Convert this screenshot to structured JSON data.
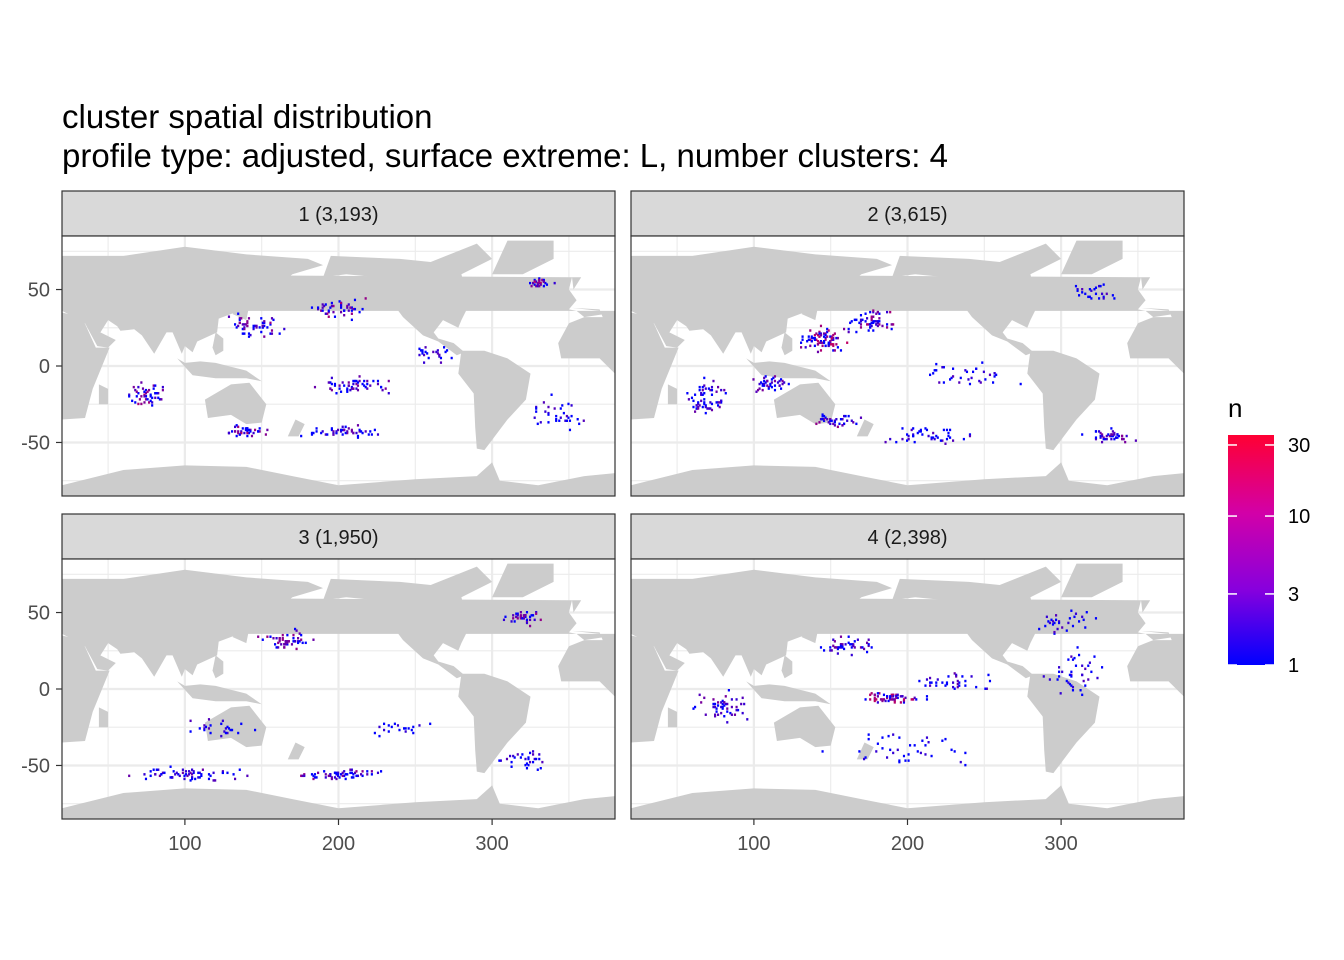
{
  "title": "cluster spatial distribution",
  "subtitle": "profile type: adjusted, surface extreme: L, number clusters: 4",
  "colors": {
    "land": "#cccccc",
    "ocean": "#ffffff",
    "grid_major": "#ebebeb",
    "strip_fill": "#d9d9d9",
    "panel_border": "#333333",
    "low": "#0000ff",
    "high": "#ff0000"
  },
  "chart_data": {
    "type": "heatmap",
    "xlim": [
      20,
      380
    ],
    "ylim": [
      -85,
      85
    ],
    "x_ticks": [
      "100",
      "200",
      "300"
    ],
    "y_ticks": [
      "50",
      "0",
      "-50"
    ],
    "x_tick_values": [
      100,
      200,
      300
    ],
    "y_tick_values": [
      50,
      0,
      -50
    ],
    "grid": true,
    "legend": {
      "title": "n",
      "scale": "log",
      "range": [
        1,
        35
      ],
      "ticks": [
        "30",
        "10",
        "3",
        "1"
      ],
      "tick_values": [
        30,
        10,
        3,
        1
      ],
      "placement": "right"
    },
    "panels": [
      {
        "label": "1 (3,193)",
        "hotspots": [
          {
            "lon": 145,
            "lat": 28,
            "spread_lon": 22,
            "spread_lat": 10,
            "count": 55,
            "max_n": 8
          },
          {
            "lon": 198,
            "lat": 38,
            "spread_lon": 25,
            "spread_lat": 8,
            "count": 45,
            "max_n": 10
          },
          {
            "lon": 330,
            "lat": 55,
            "spread_lon": 10,
            "spread_lat": 5,
            "count": 30,
            "max_n": 12
          },
          {
            "lon": 75,
            "lat": -18,
            "spread_lon": 15,
            "spread_lat": 10,
            "count": 50,
            "max_n": 10
          },
          {
            "lon": 140,
            "lat": -42,
            "spread_lon": 18,
            "spread_lat": 5,
            "count": 40,
            "max_n": 12
          },
          {
            "lon": 200,
            "lat": -42,
            "spread_lon": 35,
            "spread_lat": 6,
            "count": 50,
            "max_n": 6
          },
          {
            "lon": 210,
            "lat": -12,
            "spread_lon": 40,
            "spread_lat": 8,
            "count": 55,
            "max_n": 6
          },
          {
            "lon": 340,
            "lat": -30,
            "spread_lon": 25,
            "spread_lat": 15,
            "count": 35,
            "max_n": 4
          },
          {
            "lon": 260,
            "lat": 10,
            "spread_lon": 25,
            "spread_lat": 10,
            "count": 25,
            "max_n": 4
          }
        ]
      },
      {
        "label": "2 (3,615)",
        "hotspots": [
          {
            "lon": 145,
            "lat": 18,
            "spread_lon": 20,
            "spread_lat": 10,
            "count": 90,
            "max_n": 14
          },
          {
            "lon": 175,
            "lat": 30,
            "spread_lon": 20,
            "spread_lat": 12,
            "count": 60,
            "max_n": 10
          },
          {
            "lon": 70,
            "lat": -20,
            "spread_lon": 18,
            "spread_lat": 15,
            "count": 60,
            "max_n": 6
          },
          {
            "lon": 110,
            "lat": -10,
            "spread_lon": 15,
            "spread_lat": 8,
            "count": 40,
            "max_n": 6
          },
          {
            "lon": 150,
            "lat": -35,
            "spread_lon": 20,
            "spread_lat": 8,
            "count": 40,
            "max_n": 8
          },
          {
            "lon": 210,
            "lat": -45,
            "spread_lon": 35,
            "spread_lat": 8,
            "count": 45,
            "max_n": 4
          },
          {
            "lon": 330,
            "lat": -45,
            "spread_lon": 20,
            "spread_lat": 6,
            "count": 45,
            "max_n": 8
          },
          {
            "lon": 240,
            "lat": -5,
            "spread_lon": 40,
            "spread_lat": 10,
            "count": 35,
            "max_n": 4
          },
          {
            "lon": 320,
            "lat": 50,
            "spread_lon": 18,
            "spread_lat": 8,
            "count": 25,
            "max_n": 4
          }
        ]
      },
      {
        "label": "3 (1,950)",
        "hotspots": [
          {
            "lon": 165,
            "lat": 33,
            "spread_lon": 25,
            "spread_lat": 8,
            "count": 55,
            "max_n": 8
          },
          {
            "lon": 320,
            "lat": 48,
            "spread_lon": 15,
            "spread_lat": 7,
            "count": 40,
            "max_n": 8
          },
          {
            "lon": 100,
            "lat": -55,
            "spread_lon": 55,
            "spread_lat": 6,
            "count": 65,
            "max_n": 5
          },
          {
            "lon": 200,
            "lat": -55,
            "spread_lon": 40,
            "spread_lat": 5,
            "count": 60,
            "max_n": 8
          },
          {
            "lon": 320,
            "lat": -45,
            "spread_lon": 25,
            "spread_lat": 10,
            "count": 30,
            "max_n": 4
          },
          {
            "lon": 120,
            "lat": -25,
            "spread_lon": 30,
            "spread_lat": 8,
            "count": 25,
            "max_n": 4
          },
          {
            "lon": 240,
            "lat": -25,
            "spread_lon": 30,
            "spread_lat": 6,
            "count": 20,
            "max_n": 3
          }
        ]
      },
      {
        "label": "4 (2,398)",
        "hotspots": [
          {
            "lon": 190,
            "lat": -5,
            "spread_lon": 25,
            "spread_lat": 5,
            "count": 60,
            "max_n": 14
          },
          {
            "lon": 160,
            "lat": 30,
            "spread_lon": 25,
            "spread_lat": 10,
            "count": 45,
            "max_n": 6
          },
          {
            "lon": 80,
            "lat": -10,
            "spread_lon": 25,
            "spread_lat": 15,
            "count": 50,
            "max_n": 6
          },
          {
            "lon": 230,
            "lat": 5,
            "spread_lon": 35,
            "spread_lat": 10,
            "count": 35,
            "max_n": 5
          },
          {
            "lon": 310,
            "lat": 10,
            "spread_lon": 25,
            "spread_lat": 20,
            "count": 40,
            "max_n": 4
          },
          {
            "lon": 300,
            "lat": 45,
            "spread_lon": 30,
            "spread_lat": 10,
            "count": 30,
            "max_n": 4
          },
          {
            "lon": 200,
            "lat": -40,
            "spread_lon": 60,
            "spread_lat": 15,
            "count": 40,
            "max_n": 3
          }
        ]
      }
    ]
  }
}
